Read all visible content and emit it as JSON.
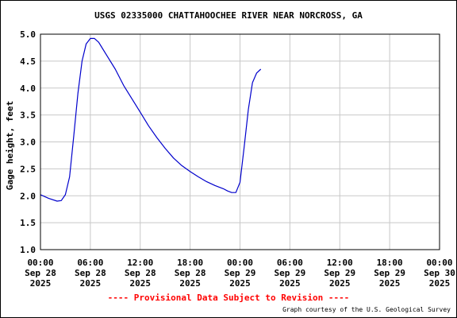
{
  "chart_data": {
    "type": "line",
    "title": "USGS 02335000 CHATTAHOOCHEE RIVER NEAR NORCROSS, GA",
    "ylabel": "Gage height, feet",
    "xlabel": "",
    "ylim": [
      1.0,
      5.0
    ],
    "yticks": [
      "1.0",
      "1.5",
      "2.0",
      "2.5",
      "3.0",
      "3.5",
      "4.0",
      "4.5",
      "5.0"
    ],
    "xticks": [
      {
        "time": "00:00",
        "date": "Sep 28",
        "year": "2025"
      },
      {
        "time": "06:00",
        "date": "Sep 28",
        "year": "2025"
      },
      {
        "time": "12:00",
        "date": "Sep 28",
        "year": "2025"
      },
      {
        "time": "18:00",
        "date": "Sep 28",
        "year": "2025"
      },
      {
        "time": "00:00",
        "date": "Sep 29",
        "year": "2025"
      },
      {
        "time": "06:00",
        "date": "Sep 29",
        "year": "2025"
      },
      {
        "time": "12:00",
        "date": "Sep 29",
        "year": "2025"
      },
      {
        "time": "18:00",
        "date": "Sep 29",
        "year": "2025"
      },
      {
        "time": "00:00",
        "date": "Sep 30",
        "year": "2025"
      }
    ],
    "xlim": [
      "2025-09-28 00:00",
      "2025-09-30 00:00"
    ],
    "grid": true,
    "series_color": "#0000cc",
    "series": [
      {
        "x": [
          "2025-09-28 00:00",
          "2025-09-28 01:00",
          "2025-09-28 02:00",
          "2025-09-28 02:30",
          "2025-09-28 03:00",
          "2025-09-28 03:30",
          "2025-09-28 04:00",
          "2025-09-28 04:30",
          "2025-09-28 05:00",
          "2025-09-28 05:30",
          "2025-09-28 06:00",
          "2025-09-28 06:30",
          "2025-09-28 07:00",
          "2025-09-28 08:00",
          "2025-09-28 09:00",
          "2025-09-28 10:00",
          "2025-09-28 11:00",
          "2025-09-28 12:00",
          "2025-09-28 13:00",
          "2025-09-28 14:00",
          "2025-09-28 15:00",
          "2025-09-28 16:00",
          "2025-09-28 17:00",
          "2025-09-28 18:00",
          "2025-09-28 19:00",
          "2025-09-28 20:00",
          "2025-09-28 21:00",
          "2025-09-28 22:00",
          "2025-09-28 22:30",
          "2025-09-28 23:00",
          "2025-09-28 23:30",
          "2025-09-29 00:00",
          "2025-09-29 00:30",
          "2025-09-29 01:00",
          "2025-09-29 01:30"
        ],
        "values": [
          2.02,
          1.95,
          1.9,
          1.91,
          2.02,
          2.35,
          3.1,
          3.9,
          4.5,
          4.82,
          4.92,
          4.92,
          4.85,
          4.6,
          4.35,
          4.05,
          3.8,
          3.55,
          3.3,
          3.08,
          2.88,
          2.7,
          2.56,
          2.45,
          2.35,
          2.26,
          2.19,
          2.13,
          2.09,
          2.06,
          2.06,
          2.25,
          2.9,
          3.6,
          4.1
        ]
      },
      {
        "x": [
          "2025-09-29 01:30",
          "2025-09-29 02:00",
          "2025-09-29 02:30"
        ],
        "values": [
          4.1,
          4.28,
          4.35
        ]
      }
    ]
  },
  "footer": {
    "provisional": "---- Provisional Data Subject to Revision ----",
    "provisional_color": "#ff0000",
    "courtesy": "Graph courtesy of the U.S. Geological Survey"
  }
}
